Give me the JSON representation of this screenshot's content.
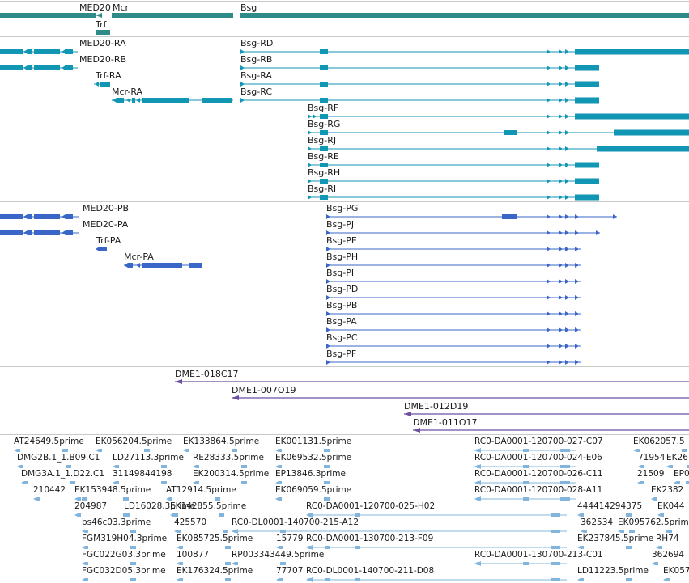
{
  "colors": {
    "gene": "#2e8b88",
    "transcript": "#1196b4",
    "protein": "#3a66c8",
    "clone": "#6c4fa3",
    "est": "#82b4dc",
    "divider": "#c8c8c8",
    "text": "#1a1a1a"
  },
  "tracks": {
    "genes": {
      "items": [
        {
          "label": "MED20"
        },
        {
          "label": "Mcr"
        },
        {
          "label": "Bsg"
        },
        {
          "label": "Trf"
        }
      ]
    },
    "transcripts": {
      "items": [
        {
          "label": "MED20-RA"
        },
        {
          "label": "MED20-RB"
        },
        {
          "label": "Trf-RA"
        },
        {
          "label": "Mcr-RA"
        },
        {
          "label": "Bsg-RD"
        },
        {
          "label": "Bsg-RB"
        },
        {
          "label": "Bsg-RA"
        },
        {
          "label": "Bsg-RC"
        },
        {
          "label": "Bsg-RF"
        },
        {
          "label": "Bsg-RG"
        },
        {
          "label": "Bsg-RJ"
        },
        {
          "label": "Bsg-RE"
        },
        {
          "label": "Bsg-RH"
        },
        {
          "label": "Bsg-RI"
        }
      ]
    },
    "proteins": {
      "items": [
        {
          "label": "MED20-PB"
        },
        {
          "label": "MED20-PA"
        },
        {
          "label": "Trf-PA"
        },
        {
          "label": "Mcr-PA"
        },
        {
          "label": "Bsg-PG"
        },
        {
          "label": "Bsg-PJ"
        },
        {
          "label": "Bsg-PE"
        },
        {
          "label": "Bsg-PH"
        },
        {
          "label": "Bsg-PI"
        },
        {
          "label": "Bsg-PD"
        },
        {
          "label": "Bsg-PB"
        },
        {
          "label": "Bsg-PA"
        },
        {
          "label": "Bsg-PC"
        },
        {
          "label": "Bsg-PF"
        }
      ]
    },
    "clones": {
      "items": [
        {
          "label": "DME1-018C17"
        },
        {
          "label": "DME1-007O19"
        },
        {
          "label": "DME1-012D19"
        },
        {
          "label": "DME1-011O17"
        }
      ]
    },
    "ests": {
      "items": [
        {
          "label": "AT24649.5prime"
        },
        {
          "label": "EK056204.5prime"
        },
        {
          "label": "EK133864.5prime"
        },
        {
          "label": "EK001131.5prime"
        },
        {
          "label": "RC0-DA0001-120700-027-C07"
        },
        {
          "label": "EK062057.5"
        },
        {
          "label": "DMG2B.1_1.B09.C1"
        },
        {
          "label": "LD27113.3prime"
        },
        {
          "label": "RE28333.5prime"
        },
        {
          "label": "EK069532.5prime"
        },
        {
          "label": "RC0-DA0001-120700-024-E06"
        },
        {
          "label": "71954"
        },
        {
          "label": "EK26"
        },
        {
          "label": "DMG3A.1_1.D22.C1"
        },
        {
          "label": "31149844198"
        },
        {
          "label": "EK200314.5prime"
        },
        {
          "label": "EP13846.3prime"
        },
        {
          "label": "RC0-DA0001-120700-026-C11"
        },
        {
          "label": "21509"
        },
        {
          "label": "EP0"
        },
        {
          "label": "210442"
        },
        {
          "label": "EK153948.5prime"
        },
        {
          "label": "AT12914.5prime"
        },
        {
          "label": "EK069059.5prime"
        },
        {
          "label": "RC0-DA0001-120700-028-A11"
        },
        {
          "label": "EK2382"
        },
        {
          "label": "204987"
        },
        {
          "label": "LD16028.3prime"
        },
        {
          "label": "EK142855.5prime"
        },
        {
          "label": "RC0-DA0001-120700-025-H02"
        },
        {
          "label": "444414294375"
        },
        {
          "label": "EK044"
        },
        {
          "label": "bs46c03.3prime"
        },
        {
          "label": "425570"
        },
        {
          "label": "RC0-DL0001-140700-215-A12"
        },
        {
          "label": "362534"
        },
        {
          "label": "EK095762.5prime"
        },
        {
          "label": "FGM319H04.3prime"
        },
        {
          "label": "EK085725.5prime"
        },
        {
          "label": "15779"
        },
        {
          "label": "RC0-DA0001-130700-213-F09"
        },
        {
          "label": "EK237845.5prime"
        },
        {
          "label": "RH74"
        },
        {
          "label": "FGC022G03.3prime"
        },
        {
          "label": "100877"
        },
        {
          "label": "RP003343449.5prime"
        },
        {
          "label": "RC0-DA0001-130700-213-C01"
        },
        {
          "label": "362694"
        },
        {
          "label": "FGC032D05.3prime"
        },
        {
          "label": "EK176324.5prime"
        },
        {
          "label": "77707"
        },
        {
          "label": "RC0-DL0001-140700-211-D08"
        },
        {
          "label": "LD11223.5prime"
        },
        {
          "label": "EK057"
        }
      ]
    }
  }
}
